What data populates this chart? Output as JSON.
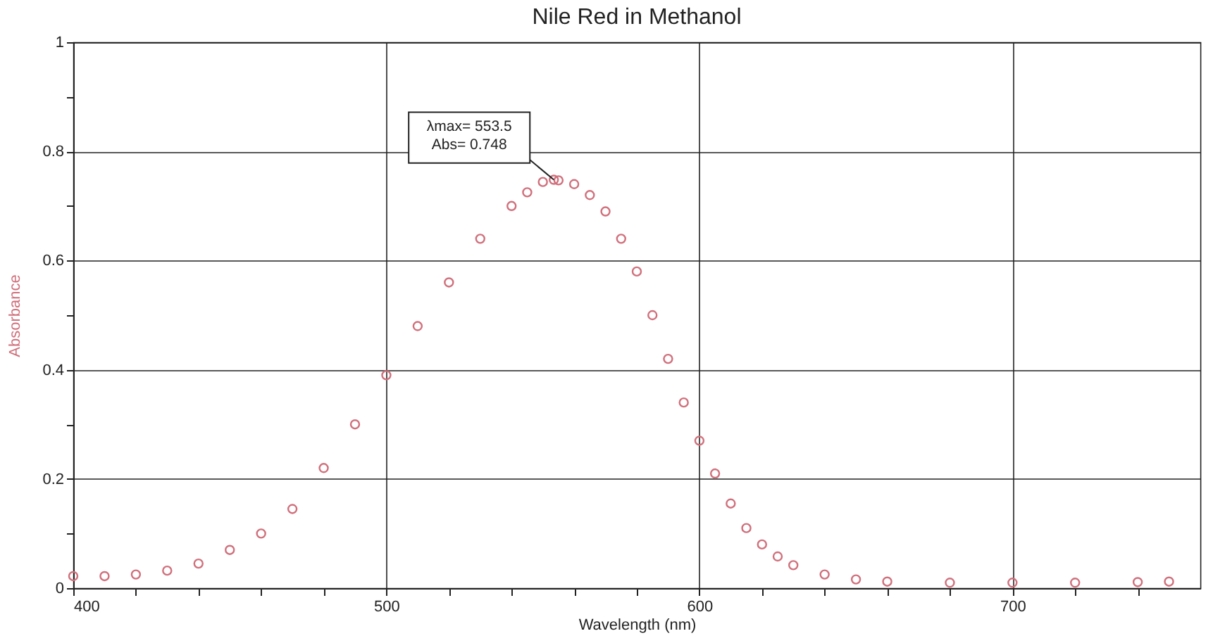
{
  "chart_data": {
    "type": "scatter",
    "title": "Nile Red in Methanol",
    "xlabel": "Wavelength (nm)",
    "ylabel": "Absorbance",
    "annotations": [
      {
        "text": "λmax= 553.5\nAbs= 0.748",
        "x": 553.5,
        "y": 0.748
      }
    ],
    "x": [
      400,
      410,
      420,
      430,
      440,
      450,
      460,
      470,
      480,
      490,
      500,
      510,
      520,
      530,
      540,
      545,
      550,
      553.5,
      555,
      560,
      565,
      570,
      575,
      580,
      585,
      590,
      595,
      600,
      605,
      610,
      615,
      620,
      625,
      630,
      640,
      650,
      660,
      680,
      700,
      720,
      740,
      750
    ],
    "series": [
      {
        "color": "#d0707c",
        "values": [
          0.022,
          0.022,
          0.025,
          0.032,
          0.045,
          0.07,
          0.1,
          0.145,
          0.22,
          0.3,
          0.39,
          0.48,
          0.56,
          0.64,
          0.7,
          0.725,
          0.744,
          0.748,
          0.747,
          0.74,
          0.72,
          0.69,
          0.64,
          0.58,
          0.5,
          0.42,
          0.34,
          0.27,
          0.21,
          0.155,
          0.11,
          0.08,
          0.058,
          0.042,
          0.025,
          0.016,
          0.012,
          0.01,
          0.01,
          0.01,
          0.011,
          0.012
        ]
      }
    ],
    "xlim": [
      400,
      760
    ],
    "ylim": [
      0,
      1
    ],
    "xticks": [
      400,
      {
        "value": 420,
        "label": null
      },
      {
        "value": 440,
        "label": null
      },
      {
        "value": 460,
        "label": null
      },
      {
        "value": 480,
        "label": null
      },
      500,
      {
        "value": 520,
        "label": null
      },
      {
        "value": 540,
        "label": null
      },
      {
        "value": 560,
        "label": null
      },
      {
        "value": 580,
        "label": null
      },
      600,
      {
        "value": 620,
        "label": null
      },
      {
        "value": 640,
        "label": null
      },
      {
        "value": 660,
        "label": null
      },
      {
        "value": 680,
        "label": null
      },
      700,
      {
        "value": 720,
        "label": null
      },
      {
        "value": 740,
        "label": null
      }
    ],
    "yticks": [
      0,
      {
        "value": 0.1,
        "label": null
      },
      0.2,
      {
        "value": 0.3,
        "label": null
      },
      0.4,
      {
        "value": 0.5,
        "label": null
      },
      0.6,
      {
        "value": 0.7,
        "label": null
      },
      0.8,
      {
        "value": 0.9,
        "label": null
      },
      1
    ],
    "grid": true,
    "marker": "circle"
  }
}
